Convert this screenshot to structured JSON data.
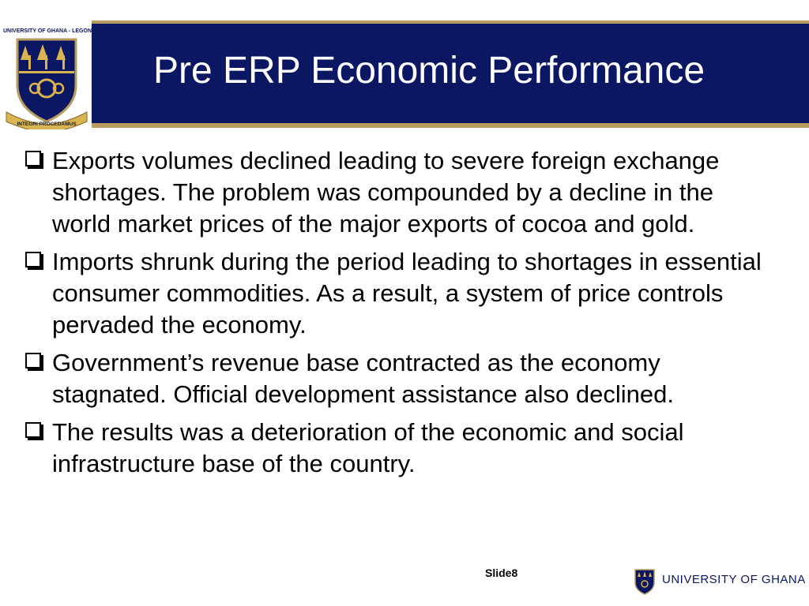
{
  "header": {
    "title": "Pre ERP Economic Performance",
    "crest_caption": "UNIVERSITY OF GHANA - LEGON",
    "crest_motto": "INTEGRI PROCEDAMUS"
  },
  "bullets": [
    "Exports volumes declined leading to severe foreign exchange shortages. The problem was compounded by a decline in the world market prices of the major exports of cocoa and gold.",
    "Imports shrunk during the period leading to shortages in essential consumer commodities. As a result, a system of price controls pervaded the economy.",
    "Government’s revenue base contracted as the economy stagnated. Official development assistance also declined.",
    "The results was a deterioration of the economic and social infrastructure base of the country."
  ],
  "footer": {
    "slide_label": "Slide8",
    "university": "UNIVERSITY OF GHANA"
  },
  "colors": {
    "navy": "#0b1763",
    "gold": "#b99c62"
  }
}
